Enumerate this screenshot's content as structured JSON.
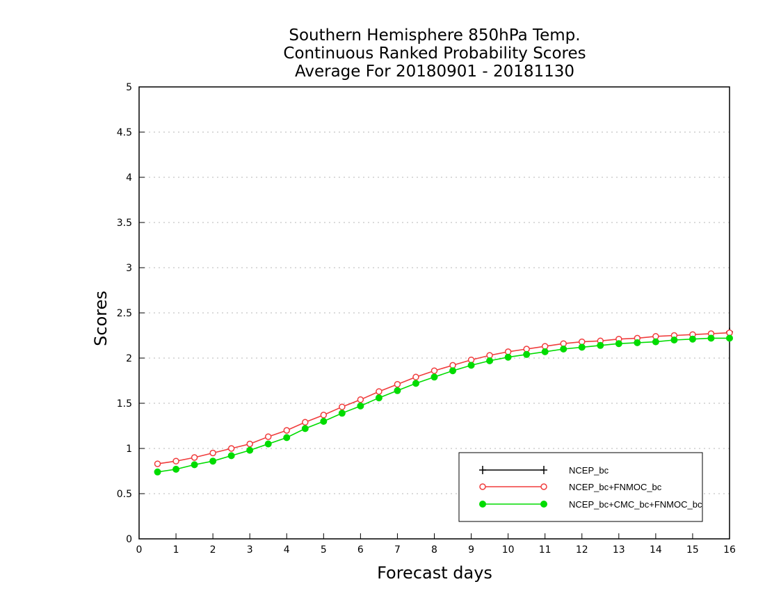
{
  "chart_data": {
    "type": "line",
    "title_lines": [
      "Southern Hemisphere 850hPa Temp.",
      "Continuous Ranked Probability Scores",
      "Average For 20180901 - 20181130"
    ],
    "xlabel": "Forecast days",
    "ylabel": "Scores",
    "xlim": [
      0,
      16
    ],
    "ylim": [
      0,
      5
    ],
    "x_ticks": [
      0,
      1,
      2,
      3,
      4,
      5,
      6,
      7,
      8,
      9,
      10,
      11,
      12,
      13,
      14,
      15,
      16
    ],
    "y_ticks": [
      0,
      0.5,
      1,
      1.5,
      2,
      2.5,
      3,
      3.5,
      4,
      4.5,
      5
    ],
    "grid": "horizontal dotted",
    "legend_position": "bottom-right",
    "x": [
      0.5,
      1,
      1.5,
      2,
      2.5,
      3,
      3.5,
      4,
      4.5,
      5,
      5.5,
      6,
      6.5,
      7,
      7.5,
      8,
      8.5,
      9,
      9.5,
      10,
      10.5,
      11,
      11.5,
      12,
      12.5,
      13,
      13.5,
      14,
      14.5,
      15,
      15.5,
      16
    ],
    "series": [
      {
        "name": "NCEP_bc",
        "color": "#000000",
        "marker": "plus",
        "values": [
          null,
          null,
          null,
          null,
          null,
          null,
          null,
          null,
          null,
          null,
          null,
          null,
          null,
          null,
          null,
          null,
          null,
          null,
          null,
          null,
          null,
          null,
          null,
          null,
          null,
          null,
          null,
          null,
          null,
          null,
          null,
          2.29
        ]
      },
      {
        "name": "NCEP_bc+FNMOC_bc",
        "color": "#f03c3c",
        "marker": "open-circle",
        "values": [
          0.83,
          0.86,
          0.9,
          0.95,
          1.0,
          1.05,
          1.13,
          1.2,
          1.29,
          1.37,
          1.46,
          1.54,
          1.63,
          1.71,
          1.79,
          1.86,
          1.92,
          1.98,
          2.03,
          2.07,
          2.1,
          2.13,
          2.16,
          2.18,
          2.19,
          2.21,
          2.22,
          2.24,
          2.25,
          2.26,
          2.27,
          2.28
        ]
      },
      {
        "name": "NCEP_bc+CMC_bc+FNMOC_bc",
        "color": "#00dc00",
        "marker": "filled-circle",
        "values": [
          0.74,
          0.77,
          0.82,
          0.86,
          0.92,
          0.98,
          1.05,
          1.12,
          1.22,
          1.3,
          1.39,
          1.47,
          1.56,
          1.64,
          1.72,
          1.79,
          1.86,
          1.92,
          1.97,
          2.01,
          2.04,
          2.07,
          2.1,
          2.12,
          2.14,
          2.16,
          2.17,
          2.18,
          2.2,
          2.21,
          2.22,
          2.22
        ]
      }
    ]
  }
}
